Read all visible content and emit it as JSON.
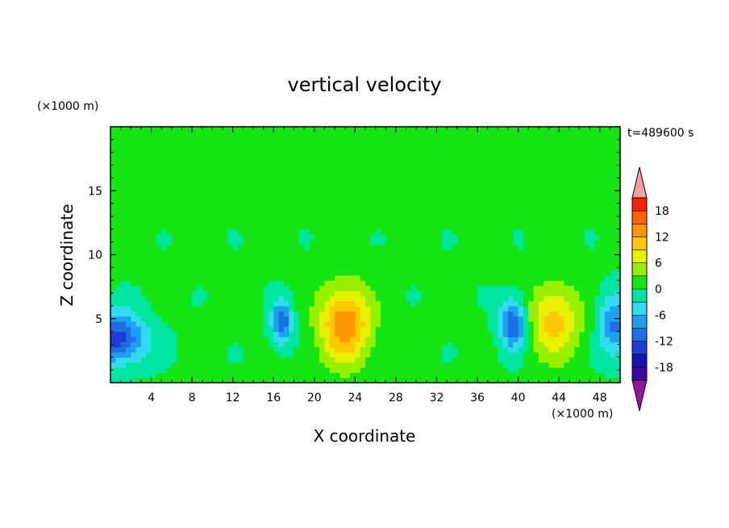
{
  "chart_data": {
    "type": "heatmap",
    "title": "vertical velocity",
    "xlabel": "X coordinate",
    "ylabel": "Z coordinate",
    "x_unit": "(×1000 m)",
    "y_unit": "(×1000 m)",
    "time_label": "t=489600 s",
    "xlim": [
      0,
      50
    ],
    "ylim": [
      0,
      20
    ],
    "x_ticks": [
      4,
      8,
      12,
      16,
      20,
      24,
      28,
      32,
      36,
      40,
      44,
      48
    ],
    "y_ticks": [
      5,
      10,
      15
    ],
    "colorbar": {
      "levels": [
        -21,
        -18,
        -15,
        -12,
        -9,
        -6,
        -3,
        0,
        3,
        6,
        9,
        12,
        15,
        18,
        21
      ],
      "tick_labels": [
        "-18",
        "-12",
        "-6",
        "0",
        "6",
        "12",
        "18"
      ],
      "tick_values": [
        -18,
        -12,
        -6,
        0,
        6,
        12,
        18
      ],
      "colors": [
        "#3c0aa0",
        "#1414b4",
        "#1e3cd2",
        "#1e6ee6",
        "#1ea0f0",
        "#32dcf0",
        "#00e6a0",
        "#14e614",
        "#96f000",
        "#e6f000",
        "#ffc800",
        "#ff9600",
        "#ff6400",
        "#ff2000"
      ],
      "under_color": "#9614a0",
      "over_color": "#f4a0a0"
    },
    "features": [
      {
        "x": 0.5,
        "z": 3.5,
        "value": -14,
        "sx": 3.0,
        "sz": 2.0
      },
      {
        "x": 16.8,
        "z": 4.8,
        "value": -12,
        "sx": 1.0,
        "sz": 1.7
      },
      {
        "x": 23.0,
        "z": 4.6,
        "value": 14,
        "sx": 2.5,
        "sz": 3.0
      },
      {
        "x": 39.5,
        "z": 4.6,
        "value": -13,
        "sx": 1.3,
        "sz": 2.0
      },
      {
        "x": 43.5,
        "z": 4.8,
        "value": 10,
        "sx": 2.5,
        "sz": 2.8
      },
      {
        "x": 49.5,
        "z": 4.5,
        "value": -10,
        "sx": 1.6,
        "sz": 2.4
      }
    ]
  }
}
